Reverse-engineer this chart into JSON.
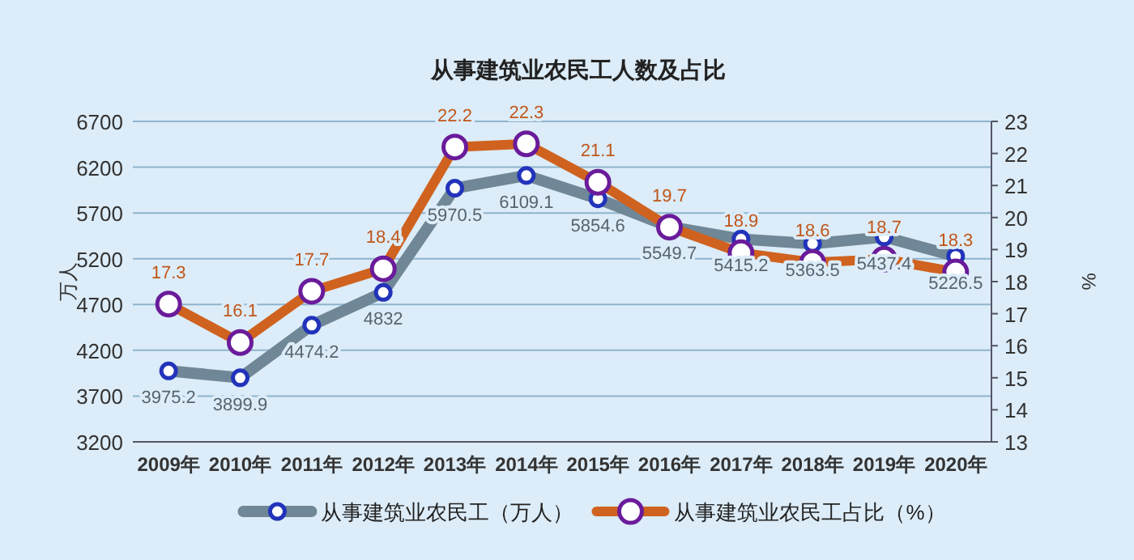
{
  "chart_data": {
    "type": "line",
    "title": "从事建筑业农民工人数及占比",
    "categories": [
      "2009年",
      "2010年",
      "2011年",
      "2012年",
      "2013年",
      "2014年",
      "2015年",
      "2016年",
      "2017年",
      "2018年",
      "2019年",
      "2020年"
    ],
    "series": [
      {
        "name": "从事建筑业农民工（万人）",
        "color": "#6f8796",
        "values": [
          3975.2,
          3899.9,
          4474.2,
          4832,
          5970.5,
          6109.1,
          5854.6,
          5549.7,
          5415.2,
          5363.5,
          5437.4,
          5226.5
        ]
      },
      {
        "name": "从事建筑业农民工占比（%）",
        "color": "#d0621f",
        "axis": "y2",
        "values": [
          17.3,
          16.1,
          17.7,
          18.4,
          22.2,
          22.3,
          21.1,
          19.7,
          18.9,
          18.6,
          18.7,
          18.3
        ]
      }
    ],
    "ylabel": "万人",
    "y2label": "%",
    "ylim": [
      3200,
      6700
    ],
    "yticks": [
      3200,
      3700,
      4200,
      4700,
      5200,
      5700,
      6200,
      6700
    ],
    "y2lim": [
      13,
      23
    ],
    "y2ticks": [
      13,
      14,
      15,
      16,
      17,
      18,
      19,
      20,
      21,
      22,
      23
    ],
    "data_labels": true,
    "grid": "y",
    "legend": "bottom",
    "marker": "circle",
    "line_style": "solid"
  }
}
